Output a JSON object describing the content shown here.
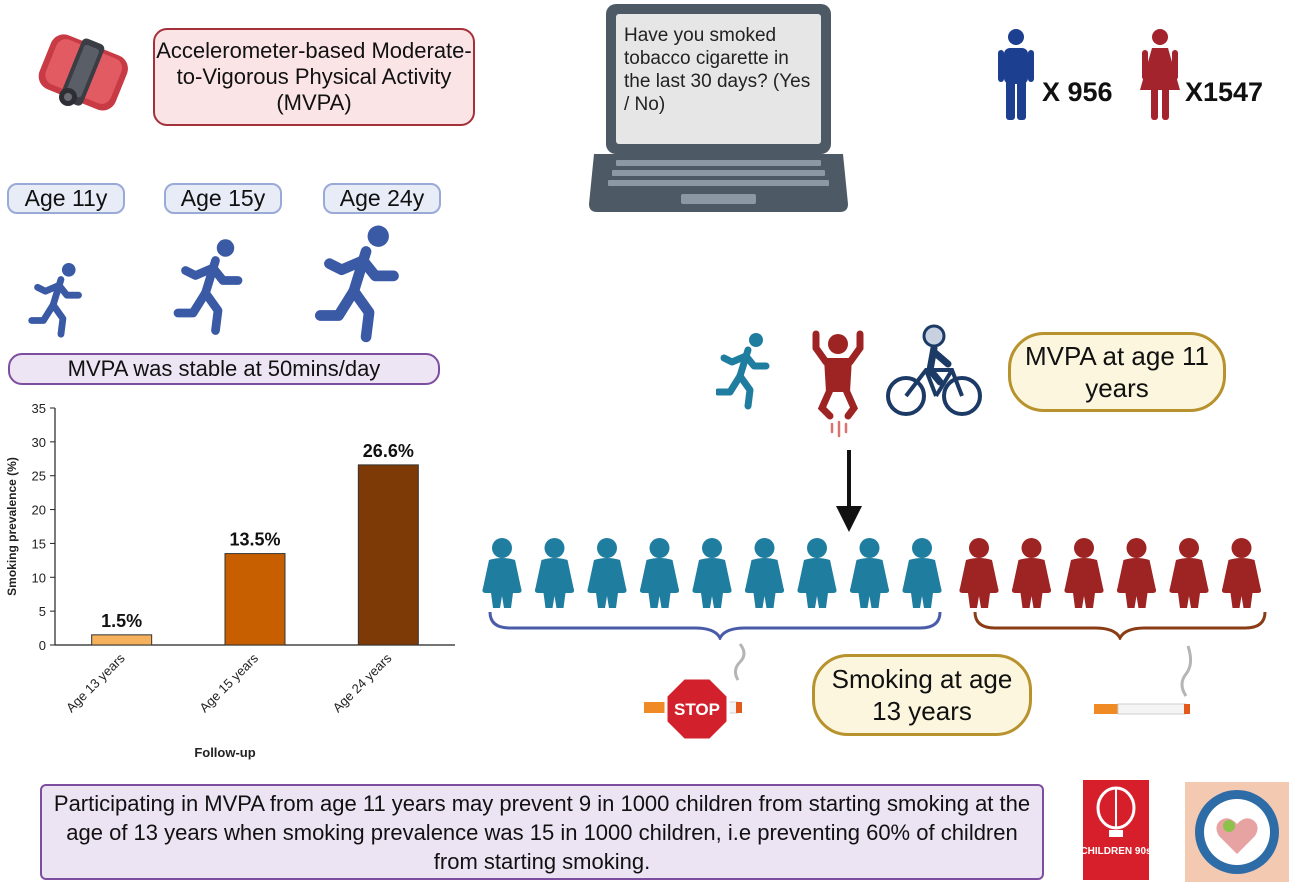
{
  "device_title": "Accelerometer-based Moderate-to-Vigorous Physical Activity (MVPA)",
  "ages": [
    "Age 11y",
    "Age 15y",
    "Age 24y"
  ],
  "stable_note": "MVPA was stable at 50mins/day",
  "question": "Have you smoked tobacco cigarette in the last 30 days? (Yes / No)",
  "participants": {
    "male_label": "X 956",
    "female_label": "X1547"
  },
  "mvpa_bubble": "MVPA at age 11 years",
  "smoking_bubble": "Smoking at age 13 years",
  "stop_sign": "STOP",
  "summary": "Participating in MVPA from age 11 years may prevent 9 in 1000 children from starting smoking at the age of 13 years when smoking prevalence was 15 in 1000 children, i.e preventing 60% of children from starting smoking.",
  "logos": {
    "children_90s_text": "CHILDREN 90s"
  },
  "colors": {
    "blue_figure": "#1f7da0",
    "red_figure": "#9e2424",
    "runner": "#3a5aa5",
    "male": "#1c3f8f",
    "female": "#a4242e"
  },
  "chart_data": {
    "type": "bar",
    "title": "",
    "categories": [
      "Age 13 years",
      "Age 15 years",
      "Age 24 years"
    ],
    "values": [
      1.5,
      13.5,
      26.6
    ],
    "data_labels": [
      "1.5%",
      "13.5%",
      "26.6%"
    ],
    "colors": [
      "#f5b15c",
      "#c75f00",
      "#7e3a06"
    ],
    "xlabel": "Follow-up",
    "ylabel": "Smoking prevalence (%)",
    "ylim": [
      0,
      35
    ],
    "yticks": [
      0,
      5,
      10,
      15,
      20,
      25,
      30,
      35
    ],
    "ytick_labels": [
      "0",
      "5",
      "10",
      "15",
      "20",
      "25",
      "30",
      "35"
    ]
  }
}
